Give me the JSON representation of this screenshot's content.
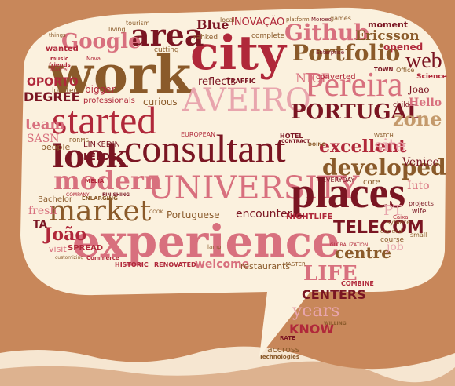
{
  "palette": {
    "bg_frame": "#c8875a",
    "bubble": "#fbf1de",
    "dark_red": "#7a1522",
    "red": "#b0283a",
    "pink": "#d8707e",
    "light_pink": "#e8a5ad",
    "brown": "#8a5a2a",
    "tan": "#c49a6c"
  },
  "words": [
    {
      "t": "work",
      "c": "brown"
    },
    {
      "t": "city",
      "c": "red"
    },
    {
      "t": "area",
      "c": "dark_red"
    },
    {
      "t": "Github",
      "c": "pink"
    },
    {
      "t": "Pereira",
      "c": "pink"
    },
    {
      "t": "Portfolio",
      "c": "brown"
    },
    {
      "t": "AVEIRO",
      "c": "light_pink"
    },
    {
      "t": "started",
      "c": "red"
    },
    {
      "t": "PORTUGAL",
      "c": "dark_red"
    },
    {
      "t": "consultant",
      "c": "dark_red"
    },
    {
      "t": "look",
      "c": "dark_red"
    },
    {
      "t": "developed",
      "c": "brown"
    },
    {
      "t": "modern",
      "c": "pink"
    },
    {
      "t": "UNIVERSITY",
      "c": "pink"
    },
    {
      "t": "places",
      "c": "dark_red"
    },
    {
      "t": "market",
      "c": "brown"
    },
    {
      "t": "experience",
      "c": "pink"
    },
    {
      "t": "TELECOM",
      "c": "dark_red"
    },
    {
      "t": "Google",
      "c": "pink"
    },
    {
      "t": "web",
      "c": "dark_red"
    },
    {
      "t": "Ericsson",
      "c": "brown"
    },
    {
      "t": "excellent",
      "c": "red"
    },
    {
      "t": "zone",
      "c": "tan"
    },
    {
      "t": "site",
      "c": "light_pink"
    },
    {
      "t": "Blue",
      "c": "dark_red"
    },
    {
      "t": "INOVAÇÃO",
      "c": "red"
    },
    {
      "t": "João",
      "c": "red"
    },
    {
      "t": "centre",
      "c": "brown"
    },
    {
      "t": "LIFE",
      "c": "pink"
    },
    {
      "t": "CENTERS",
      "c": "dark_red"
    },
    {
      "t": "years",
      "c": "light_pink"
    },
    {
      "t": "KNOW",
      "c": "red"
    },
    {
      "t": "Hello",
      "c": "pink"
    },
    {
      "t": "reflects",
      "c": "dark_red"
    },
    {
      "t": "NICE",
      "c": "pink"
    },
    {
      "t": "DEGREE",
      "c": "dark_red"
    },
    {
      "t": "OPORTO",
      "c": "red"
    },
    {
      "t": "team",
      "c": "pink"
    },
    {
      "t": "SASN",
      "c": "pink"
    },
    {
      "t": "professionals",
      "c": "red"
    },
    {
      "t": "curious",
      "c": "brown"
    },
    {
      "t": "welcome",
      "c": "pink"
    },
    {
      "t": "restaurants",
      "c": "brown"
    },
    {
      "t": "encounter",
      "c": "dark_red"
    },
    {
      "t": "Portuguese",
      "c": "brown"
    },
    {
      "t": "NIGHTLIFE",
      "c": "red"
    },
    {
      "t": "LINKEDIN",
      "c": "dark_red"
    },
    {
      "t": "LEEDS",
      "c": "dark_red"
    },
    {
      "t": "people",
      "c": "brown"
    },
    {
      "t": "Venice",
      "c": "dark_red"
    },
    {
      "t": "PT",
      "c": "light_pink"
    },
    {
      "t": "job",
      "c": "light_pink"
    },
    {
      "t": "fresh",
      "c": "pink"
    },
    {
      "t": "TA",
      "c": "dark_red"
    },
    {
      "t": "Bachelor",
      "c": "brown"
    },
    {
      "t": "visit",
      "c": "pink"
    },
    {
      "t": "SPREAD",
      "c": "red"
    },
    {
      "t": "rahked",
      "c": "brown"
    },
    {
      "t": "complete",
      "c": "brown"
    },
    {
      "t": "cutting",
      "c": "brown"
    },
    {
      "t": "tourism",
      "c": "brown"
    },
    {
      "t": "living",
      "c": "brown"
    },
    {
      "t": "wanted",
      "c": "red"
    },
    {
      "t": "opened",
      "c": "red"
    },
    {
      "t": "moment",
      "c": "dark_red"
    },
    {
      "t": "Joao",
      "c": "dark_red"
    },
    {
      "t": "child",
      "c": "dark_red"
    },
    {
      "t": "located",
      "c": "brown"
    },
    {
      "t": "bigger",
      "c": "red"
    },
    {
      "t": "converted",
      "c": "red"
    },
    {
      "t": "TRAFFIC",
      "c": "dark_red"
    },
    {
      "t": "EUROPEAN",
      "c": "red"
    },
    {
      "t": "HOTEL",
      "c": "dark_red"
    },
    {
      "t": "FORMS",
      "c": "brown"
    },
    {
      "t": "core",
      "c": "brown"
    },
    {
      "t": "EVERYDAY",
      "c": "dark_red"
    },
    {
      "t": "Iuto",
      "c": "pink"
    },
    {
      "t": "projects",
      "c": "dark_red"
    },
    {
      "t": "wife",
      "c": "dark_red"
    },
    {
      "t": "course",
      "c": "brown"
    },
    {
      "t": "HISTORIC",
      "c": "red"
    },
    {
      "t": "RENOVATED",
      "c": "red"
    },
    {
      "t": "MASTER",
      "c": "brown"
    },
    {
      "t": "COMBINE",
      "c": "red"
    },
    {
      "t": "accross",
      "c": "brown"
    },
    {
      "t": "Technologies",
      "c": "brown"
    },
    {
      "t": "Science",
      "c": "red"
    },
    {
      "t": "games",
      "c": "brown"
    },
    {
      "t": "platform",
      "c": "brown"
    },
    {
      "t": "local",
      "c": "brown"
    },
    {
      "t": "Moroeo",
      "c": "dark_red"
    },
    {
      "t": "Enterprise",
      "c": "dark_red"
    },
    {
      "t": "TOWN",
      "c": "dark_red"
    },
    {
      "t": "Office",
      "c": "brown"
    },
    {
      "t": "Commerce",
      "c": "red"
    },
    {
      "t": "lamp",
      "c": "brown"
    },
    {
      "t": "things",
      "c": "brown"
    },
    {
      "t": "music",
      "c": "red"
    },
    {
      "t": "friends",
      "c": "red"
    },
    {
      "t": "Nova",
      "c": "red"
    },
    {
      "t": "CONTRACT",
      "c": "dark_red"
    },
    {
      "t": "GLOBALIZATION",
      "c": "red"
    },
    {
      "t": "ENLARGING",
      "c": "brown"
    },
    {
      "t": "COOK",
      "c": "brown"
    },
    {
      "t": "Marcal",
      "c": "red"
    },
    {
      "t": "customizing",
      "c": "brown"
    },
    {
      "t": "WILLING",
      "c": "brown"
    },
    {
      "t": "RATE",
      "c": "dark_red"
    },
    {
      "t": "Caixa",
      "c": "red"
    },
    {
      "t": "syfarite",
      "c": "brown"
    },
    {
      "t": "decided",
      "c": "brown"
    },
    {
      "t": "small",
      "c": "brown"
    },
    {
      "t": "DOING",
      "c": "brown"
    },
    {
      "t": "FINISHING",
      "c": "dark_red"
    },
    {
      "t": "MELIA",
      "c": "red"
    },
    {
      "t": "COMPANY",
      "c": "red"
    },
    {
      "t": "WATCH",
      "c": "brown"
    }
  ]
}
